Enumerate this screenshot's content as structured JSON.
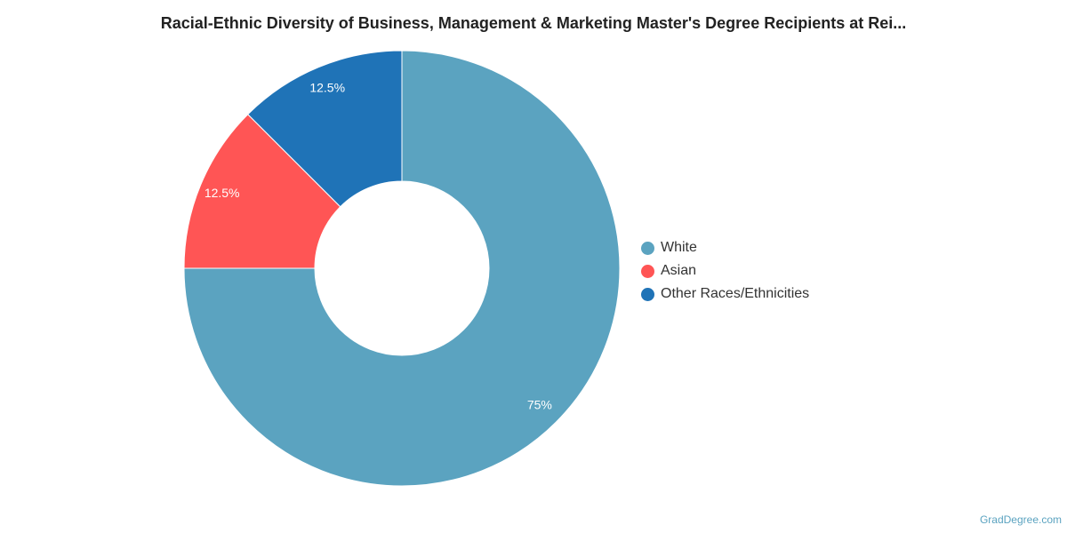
{
  "chart_data": {
    "type": "pie",
    "title": "Racial-Ethnic Diversity of Business, Management & Marketing Master's Degree Recipients at Rei...",
    "categories": [
      "White",
      "Asian",
      "Other Races/Ethnicities"
    ],
    "values": [
      75,
      12.5,
      12.5
    ],
    "value_labels": [
      "75%",
      "12.5%",
      "12.5%"
    ],
    "colors": [
      "#5ba3c0",
      "#ff5555",
      "#1f73b7"
    ],
    "donut": true,
    "legend_position": "right"
  },
  "credit": "GradDegree.com"
}
